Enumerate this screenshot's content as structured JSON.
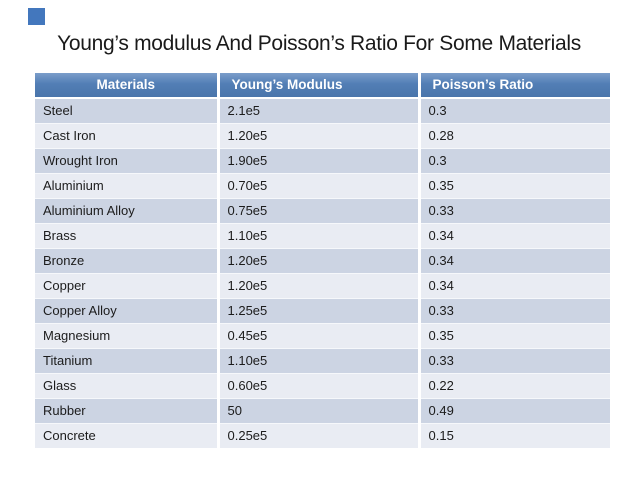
{
  "slide": {
    "title": "Young’s modulus And Poisson’s Ratio For Some Materials"
  },
  "decor": {
    "corner_square_color": "#4377bd"
  },
  "colors": {
    "header_bg_top": "#7b9dca",
    "header_bg_mid": "#527eb5",
    "header_bg_bottom": "#4a75ab",
    "header_text": "#ffffff",
    "row_odd_bg": "#ccd4e3",
    "row_even_bg": "#e9ecf3",
    "cell_text": "#1c1c1c",
    "title_text": "#1a1a1a"
  },
  "table": {
    "headers": [
      "Materials",
      "Young’s Modulus",
      "Poisson’s Ratio"
    ],
    "rows": [
      [
        "Steel",
        "2.1e5",
        "0.3"
      ],
      [
        "Cast Iron",
        "1.20e5",
        "0.28"
      ],
      [
        "Wrought Iron",
        "1.90e5",
        "0.3"
      ],
      [
        "Aluminium",
        "0.70e5",
        "0.35"
      ],
      [
        "Aluminium Alloy",
        "0.75e5",
        "0.33"
      ],
      [
        "Brass",
        "1.10e5",
        "0.34"
      ],
      [
        "Bronze",
        "1.20e5",
        "0.34"
      ],
      [
        "Copper",
        "1.20e5",
        "0.34"
      ],
      [
        "Copper Alloy",
        "1.25e5",
        "0.33"
      ],
      [
        "Magnesium",
        "0.45e5",
        "0.35"
      ],
      [
        "Titanium",
        "1.10e5",
        "0.33"
      ],
      [
        "Glass",
        "0.60e5",
        "0.22"
      ],
      [
        "Rubber",
        "50",
        "0.49"
      ],
      [
        "Concrete",
        "0.25e5",
        "0.15"
      ]
    ]
  }
}
